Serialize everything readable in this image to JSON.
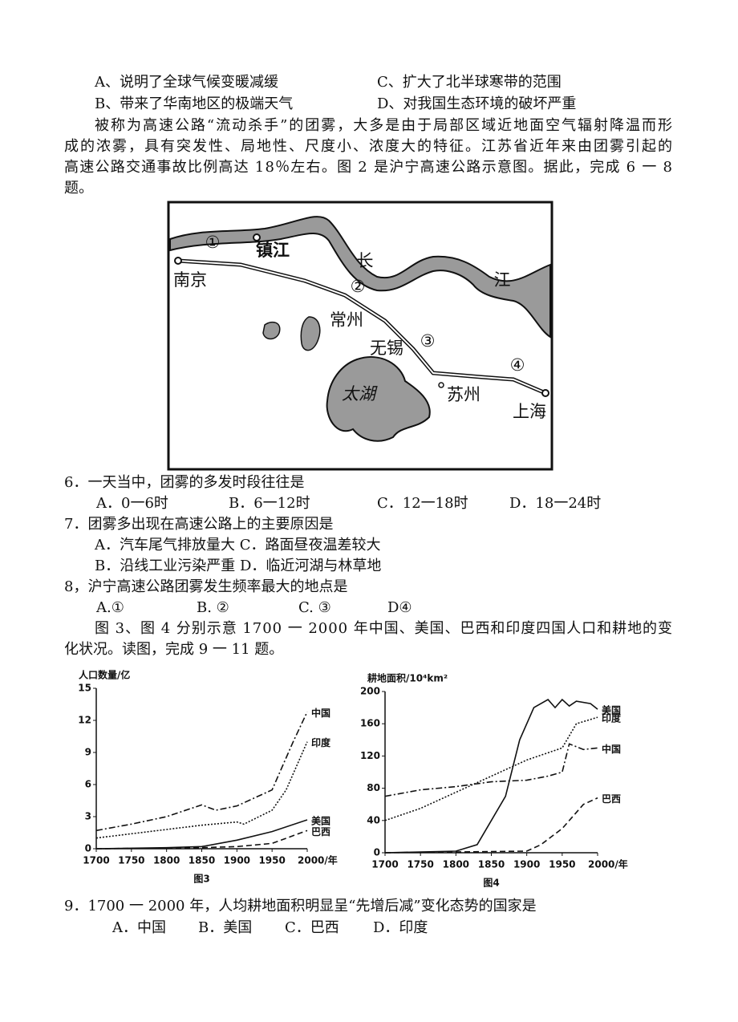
{
  "prev_options": [
    "A、说明了全球气候变暖减缓",
    "C、扩大了北半球寒带的范围",
    "B、带来了华南地区的极端天气",
    "D、对我国生态环境的破坏严重"
  ],
  "passage1": [
    "被称为高速公路“流动杀手”的团雾，大多是由于局部区域近地面空气辐射降温而形",
    "成的浓雾，具有突发性、局地性、尺度小、浓度大的特征。江苏省近年来由团雾引起的",
    "高速公路交通事故比例高达 18％左右。图 2 是沪宁高速公路示意图。据此，完成 6 一 8",
    "题。"
  ],
  "figure2": {
    "labels": [
      "①",
      "镇江",
      "长",
      "江",
      "南京",
      "②",
      "常州",
      "无锡",
      "③",
      "太湖",
      "④",
      "苏州",
      "上海"
    ]
  },
  "q6": {
    "stem": "6．一天当中，团雾的多发时段往往是",
    "options": [
      "A．0一6时",
      "B．6一12时",
      "C．12一18时",
      "D．18一24时"
    ]
  },
  "q7": {
    "stem": "7．团雾多出现在高速公路上的主要原因是",
    "options": [
      "A．汽车尾气排放量大 C．路面昼夜温差较大",
      "B．沿线工业污染严重 D．临近河湖与林草地"
    ]
  },
  "q8": {
    "stem": "8，沪宁高速公路团雾发生频率最大的地点是",
    "options": [
      "A.①",
      "B. ②",
      "C. ③",
      "D④"
    ]
  },
  "passage2": [
    "图 3、图 4 分别示意 1700 一 2000 年中国、美国、巴西和印度四国人口和耕地的变",
    "化状况。读图，完成 9 一 11 题。"
  ],
  "chart_data": [
    {
      "type": "line",
      "ylabel": "人口数量/亿",
      "caption": "图3",
      "ylim": [
        0,
        15
      ],
      "yticks": [
        0,
        3,
        6,
        9,
        12,
        15
      ],
      "xlim": [
        1700,
        2000
      ],
      "xticks": [
        1700,
        1750,
        1800,
        1850,
        1900,
        1950,
        {
          "value": 2000,
          "label": "2000/年"
        }
      ],
      "series": [
        {
          "name": "中国",
          "color": "#111",
          "style": "dashdot",
          "x": [
            1700,
            1750,
            1800,
            1850,
            1870,
            1900,
            1950,
            1980,
            2000
          ],
          "values": [
            1.7,
            2.3,
            3.0,
            4.1,
            3.6,
            4.0,
            5.5,
            10,
            12.8
          ]
        },
        {
          "name": "印度",
          "color": "#111",
          "style": "dotted",
          "x": [
            1700,
            1750,
            1800,
            1850,
            1900,
            1910,
            1950,
            1970,
            2000
          ],
          "values": [
            1.0,
            1.4,
            1.8,
            2.2,
            2.5,
            2.3,
            3.6,
            5.5,
            10
          ]
        },
        {
          "name": "美国",
          "color": "#111",
          "style": "solid",
          "x": [
            1700,
            1800,
            1850,
            1900,
            1950,
            2000
          ],
          "values": [
            0,
            0.1,
            0.2,
            0.8,
            1.6,
            2.7
          ]
        },
        {
          "name": "巴西",
          "color": "#111",
          "style": "dashed",
          "x": [
            1700,
            1850,
            1900,
            1950,
            2000
          ],
          "values": [
            0,
            0.1,
            0.2,
            0.5,
            1.7
          ]
        }
      ]
    },
    {
      "type": "line",
      "ylabel": "耕地面积/10⁴km²",
      "caption": "图4",
      "ylim": [
        0,
        200
      ],
      "yticks": [
        0,
        40,
        80,
        120,
        160,
        200
      ],
      "xlim": [
        1700,
        2000
      ],
      "xticks": [
        1700,
        1750,
        1800,
        1850,
        1900,
        1950,
        {
          "value": 2000,
          "label": "2000/年"
        }
      ],
      "series": [
        {
          "name": "美国",
          "color": "#111",
          "style": "solid",
          "x": [
            1700,
            1800,
            1830,
            1850,
            1870,
            1890,
            1910,
            1930,
            1940,
            1950,
            1960,
            1970,
            1990,
            2000
          ],
          "values": [
            0,
            2,
            10,
            40,
            70,
            140,
            180,
            190,
            180,
            190,
            182,
            188,
            185,
            178
          ]
        },
        {
          "name": "印度",
          "color": "#111",
          "style": "dotted",
          "x": [
            1700,
            1750,
            1800,
            1850,
            1900,
            1950,
            1970,
            2000
          ],
          "values": [
            40,
            55,
            75,
            95,
            115,
            130,
            160,
            168
          ]
        },
        {
          "name": "中国",
          "color": "#111",
          "style": "dashdot",
          "x": [
            1700,
            1750,
            1800,
            1850,
            1900,
            1930,
            1950,
            1960,
            1980,
            2000
          ],
          "values": [
            70,
            78,
            82,
            88,
            90,
            95,
            100,
            135,
            128,
            130
          ]
        },
        {
          "name": "巴西",
          "color": "#111",
          "style": "dashed",
          "x": [
            1700,
            1900,
            1920,
            1950,
            1980,
            2000
          ],
          "values": [
            0,
            2,
            10,
            30,
            60,
            68
          ]
        }
      ]
    }
  ],
  "q9": {
    "stem": "9．1700 一 2000 年，人均耕地面积明显呈“先增后减”变化态势的国家是",
    "options": [
      "A．中国",
      "B．美国",
      "C．巴西",
      "D．印度"
    ]
  }
}
